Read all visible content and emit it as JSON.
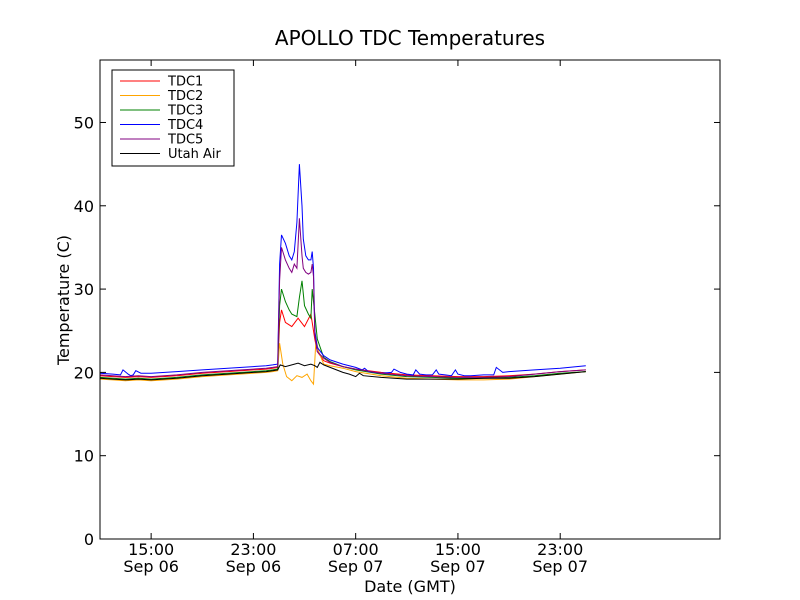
{
  "chart_data": {
    "type": "line",
    "title": "APOLLO TDC Temperatures",
    "xlabel": "Date (GMT)",
    "ylabel": "Temperature (C)",
    "xlim": [
      11,
      59.5
    ],
    "ylim": [
      0,
      57.5
    ],
    "x_unit": "hours since 00:00 GMT Sep 06",
    "grid": false,
    "legend_position": "top-left",
    "xticks": [
      {
        "x": 15,
        "time": "15:00",
        "date": "Sep 06"
      },
      {
        "x": 23,
        "time": "23:00",
        "date": "Sep 06"
      },
      {
        "x": 31,
        "time": "07:00",
        "date": "Sep 07"
      },
      {
        "x": 39,
        "time": "15:00",
        "date": "Sep 07"
      },
      {
        "x": 47,
        "time": "23:00",
        "date": "Sep 07"
      }
    ],
    "yticks": [
      0,
      10,
      20,
      30,
      40,
      50
    ],
    "series": [
      {
        "name": "TDC1",
        "color": "#ff0000",
        "x": [
          11,
          12,
          13,
          14,
          15,
          17,
          19,
          21,
          23,
          24,
          24.5,
          24.9,
          25.05,
          25.2,
          25.5,
          26.0,
          26.5,
          27.0,
          27.5,
          27.8,
          28.0,
          28.5,
          29,
          30,
          31,
          33,
          35,
          37,
          39,
          41,
          43,
          45,
          47,
          49
        ],
        "y": [
          19.6,
          19.5,
          19.4,
          19.5,
          19.4,
          19.6,
          19.9,
          20.1,
          20.3,
          20.4,
          20.5,
          20.6,
          26.0,
          27.5,
          26.0,
          25.5,
          26.5,
          25.5,
          27.0,
          24.0,
          22.5,
          21.4,
          21.1,
          20.7,
          20.4,
          20.0,
          19.7,
          19.6,
          19.5,
          19.5,
          19.6,
          19.8,
          20.1,
          20.3
        ]
      },
      {
        "name": "TDC2",
        "color": "#ffa500",
        "x": [
          11,
          12,
          13,
          14,
          15,
          17,
          19,
          21,
          23,
          24,
          24.5,
          24.9,
          25.05,
          25.3,
          25.6,
          26.0,
          26.4,
          26.8,
          27.2,
          27.5,
          27.7,
          27.9,
          28.1,
          28.5,
          29,
          30,
          31,
          33,
          35,
          37,
          39,
          41,
          43,
          45,
          47,
          49
        ],
        "y": [
          19.2,
          19.1,
          19.0,
          19.1,
          19.0,
          19.2,
          19.5,
          19.7,
          19.9,
          20.0,
          20.1,
          20.2,
          23.5,
          21.0,
          19.5,
          19.0,
          19.6,
          19.4,
          19.8,
          19.0,
          18.6,
          24.0,
          22.5,
          21.0,
          20.8,
          20.5,
          20.1,
          19.6,
          19.3,
          19.2,
          19.1,
          19.1,
          19.2,
          19.5,
          19.8,
          20.1
        ]
      },
      {
        "name": "TDC3",
        "color": "#008000",
        "x": [
          11,
          12,
          13,
          14,
          15,
          17,
          19,
          21,
          23,
          24,
          24.5,
          24.9,
          25.05,
          25.2,
          25.5,
          25.8,
          26.0,
          26.4,
          26.6,
          26.8,
          27.0,
          27.3,
          27.5,
          27.6,
          27.8,
          28.0,
          28.5,
          29,
          30,
          31,
          33,
          35,
          37,
          39,
          41,
          43,
          45,
          47,
          49
        ],
        "y": [
          19.4,
          19.3,
          19.2,
          19.3,
          19.2,
          19.4,
          19.7,
          19.9,
          20.1,
          20.2,
          20.3,
          20.4,
          28.0,
          30.0,
          28.5,
          27.5,
          27.0,
          26.7,
          29.0,
          31.0,
          28.0,
          27.0,
          26.5,
          30.0,
          27.0,
          24.0,
          21.8,
          21.3,
          20.7,
          20.3,
          19.8,
          19.5,
          19.4,
          19.3,
          19.3,
          19.4,
          19.6,
          19.9,
          20.1
        ]
      },
      {
        "name": "TDC4",
        "color": "#0000ff",
        "x": [
          11,
          12,
          12.6,
          12.8,
          13.2,
          13.4,
          13.6,
          13.8,
          14.2,
          15,
          17,
          19,
          21,
          23,
          24,
          24.5,
          24.9,
          25.05,
          25.2,
          25.5,
          25.8,
          26.0,
          26.2,
          26.4,
          26.6,
          26.8,
          26.9,
          27.1,
          27.3,
          27.5,
          27.6,
          27.7,
          27.8,
          28.0,
          28.5,
          29,
          30,
          31,
          31.5,
          31.7,
          32,
          33,
          33.8,
          34,
          34.5,
          35,
          35.5,
          35.7,
          36,
          36.5,
          37,
          37.3,
          37.5,
          38,
          38.5,
          38.8,
          39,
          39.5,
          40,
          41,
          41.8,
          42,
          42.5,
          43,
          45,
          47,
          49
        ],
        "y": [
          19.9,
          19.8,
          19.7,
          20.3,
          19.8,
          19.6,
          19.7,
          20.2,
          19.9,
          19.9,
          20.1,
          20.3,
          20.5,
          20.7,
          20.8,
          20.9,
          21.0,
          33.0,
          36.5,
          35.5,
          34.0,
          33.5,
          34.5,
          38.0,
          45.0,
          40.0,
          36.0,
          34.0,
          33.5,
          33.5,
          34.5,
          32.5,
          25.0,
          23.0,
          22.0,
          21.5,
          21.0,
          20.6,
          20.3,
          20.5,
          20.1,
          19.9,
          20.0,
          20.4,
          20.0,
          19.8,
          19.7,
          20.3,
          19.8,
          19.7,
          19.7,
          20.3,
          19.8,
          19.7,
          19.6,
          20.3,
          19.8,
          19.6,
          19.6,
          19.7,
          19.7,
          20.6,
          20.0,
          20.1,
          20.3,
          20.5,
          20.8
        ]
      },
      {
        "name": "TDC5",
        "color": "#800080",
        "x": [
          11,
          12,
          13,
          14,
          15,
          17,
          19,
          21,
          23,
          24,
          24.5,
          24.9,
          25.05,
          25.2,
          25.5,
          25.8,
          26.0,
          26.2,
          26.4,
          26.6,
          26.8,
          26.9,
          27.1,
          27.3,
          27.5,
          27.6,
          27.7,
          27.8,
          28.0,
          28.5,
          29,
          30,
          31,
          33,
          35,
          37,
          39,
          41,
          43,
          45,
          47,
          49
        ],
        "y": [
          19.7,
          19.6,
          19.5,
          19.6,
          19.5,
          19.7,
          20.0,
          20.2,
          20.4,
          20.5,
          20.6,
          20.7,
          31.0,
          35.0,
          33.5,
          32.5,
          32.0,
          33.0,
          32.5,
          38.5,
          34.0,
          32.5,
          32.0,
          31.8,
          32.0,
          33.0,
          31.5,
          24.5,
          22.5,
          21.7,
          21.2,
          20.7,
          20.4,
          19.9,
          19.6,
          19.5,
          19.4,
          19.4,
          19.5,
          19.8,
          20.1,
          20.3
        ]
      },
      {
        "name": "Utah Air",
        "color": "#000000",
        "x": [
          11,
          12,
          13,
          14,
          15,
          17,
          19,
          21,
          23,
          24,
          24.5,
          24.9,
          25.1,
          25.5,
          26.0,
          26.5,
          27.0,
          27.5,
          27.8,
          28.0,
          28.2,
          28.5,
          29.0,
          29.5,
          30.0,
          30.5,
          31.0,
          31.3,
          31.6,
          33,
          35,
          37,
          39,
          41,
          43,
          45,
          47,
          49
        ],
        "y": [
          19.3,
          19.2,
          19.1,
          19.2,
          19.1,
          19.3,
          19.6,
          19.8,
          20.0,
          20.1,
          20.2,
          20.3,
          20.9,
          20.7,
          20.9,
          21.1,
          20.8,
          21.0,
          20.8,
          20.6,
          21.2,
          20.9,
          20.6,
          20.3,
          20.0,
          19.8,
          19.5,
          19.9,
          19.6,
          19.4,
          19.2,
          19.2,
          19.2,
          19.3,
          19.3,
          19.5,
          19.8,
          20.1
        ]
      }
    ]
  }
}
